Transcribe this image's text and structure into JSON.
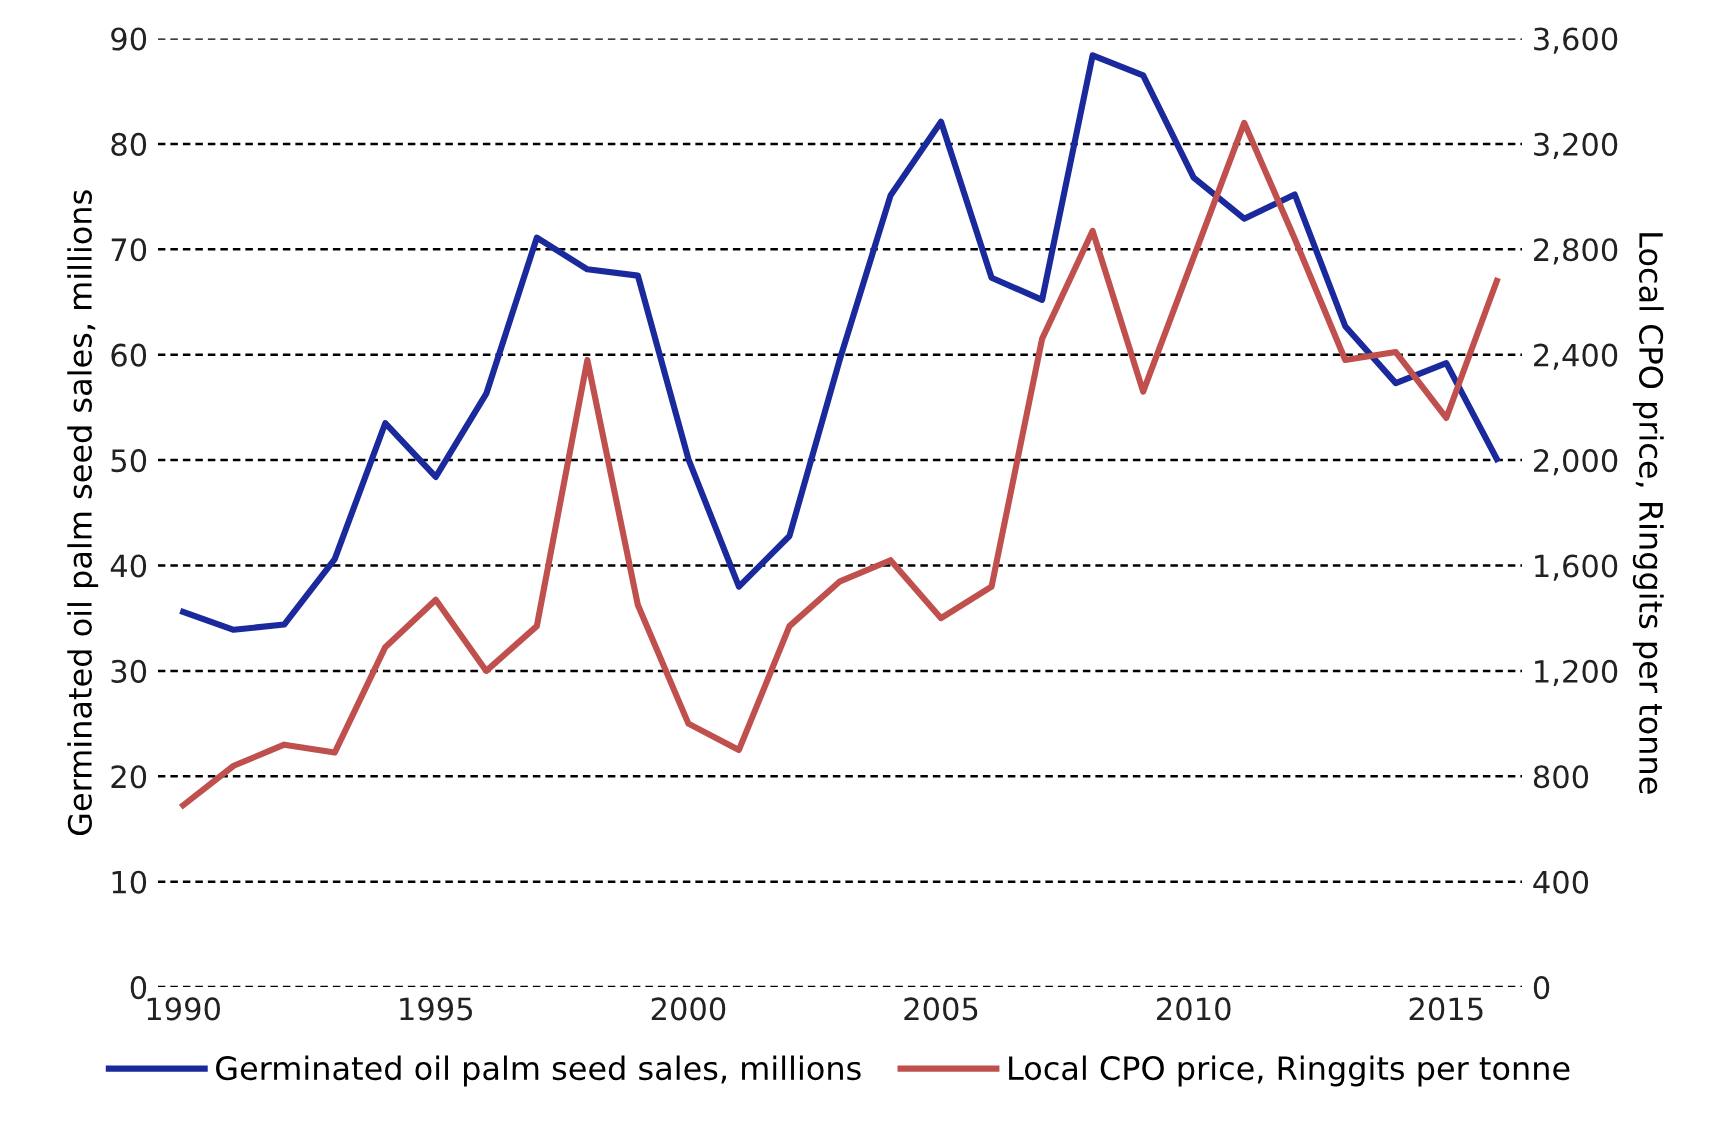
{
  "chart_data": {
    "type": "line",
    "ylabel": "Germinated oil palm seed sales, millions",
    "y2label": "Local CPO price, Ringgits per tonne",
    "x": [
      1990,
      1991,
      1992,
      1993,
      1994,
      1995,
      1996,
      1997,
      1998,
      1999,
      2000,
      2001,
      2002,
      2003,
      2004,
      2005,
      2006,
      2007,
      2008,
      2009,
      2010,
      2011,
      2012,
      2013,
      2014,
      2015,
      2016
    ],
    "series": [
      {
        "name": "Germinated oil palm seed sales, millions",
        "color": "#1a2a9c",
        "values": [
          35.6,
          33.9,
          34.4,
          40.6,
          53.5,
          48.4,
          56.3,
          71.1,
          68.1,
          67.5,
          50.1,
          38.0,
          42.8,
          59.6,
          75.1,
          82.1,
          67.3,
          65.2,
          88.4,
          86.5,
          76.8,
          72.9,
          75.2,
          62.7,
          57.3,
          59.2,
          50.1
        ]
      },
      {
        "name": "Local CPO price, Ringgits per tonne",
        "color": "#c0504d",
        "axis": "y2",
        "values": [
          690,
          840,
          920,
          890,
          1290,
          1470,
          1200,
          1370,
          2380,
          1450,
          1000,
          900,
          1370,
          1540,
          1620,
          1400,
          1520,
          2460,
          2870,
          2260,
          2770,
          3280,
          2840,
          2380,
          2410,
          2160,
          2680
        ]
      }
    ],
    "xlim": [
      1989.5,
      2016.5
    ],
    "xticks": [
      1990,
      1995,
      2000,
      2005,
      2010,
      2015
    ],
    "ylim": [
      0,
      90
    ],
    "yticks": [
      0,
      10,
      20,
      30,
      40,
      50,
      60,
      70,
      80,
      90
    ],
    "y2lim": [
      0,
      3600
    ],
    "y2ticks": [
      0,
      {
        "value": 400,
        "label": "400"
      },
      {
        "value": 800,
        "label": "800"
      },
      {
        "value": 1200,
        "label": "1,200"
      },
      {
        "value": 1600,
        "label": "1,600"
      },
      {
        "value": 2000,
        "label": "2,000"
      },
      {
        "value": 2400,
        "label": "2,400"
      },
      {
        "value": 2800,
        "label": "2,800"
      },
      {
        "value": 3200,
        "label": "3,200"
      },
      {
        "value": 3600,
        "label": "3,600"
      }
    ],
    "grid": "y",
    "legend": "bottom",
    "marker": "none",
    "line_style": "solid"
  }
}
